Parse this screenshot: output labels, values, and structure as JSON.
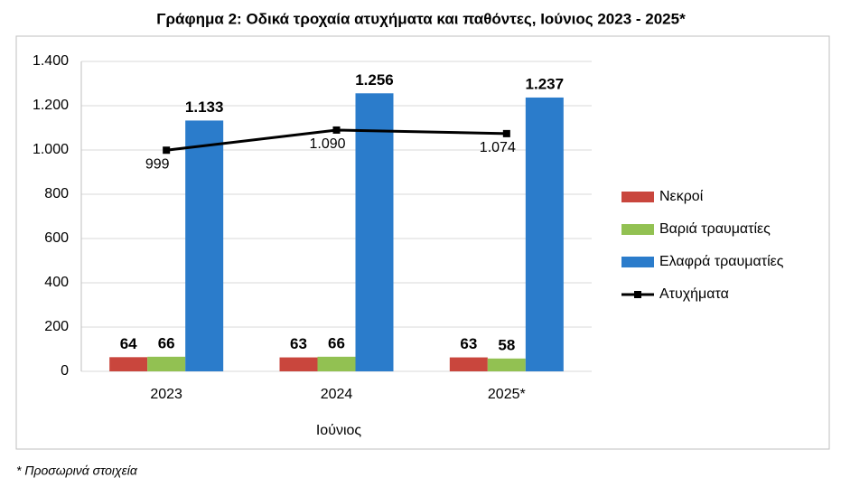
{
  "chart_data": {
    "type": "bar",
    "title": "Γράφημα 2: Οδικά τροχαία ατυχήματα και παθόντες, Ιούνιος 2023 - 2025*",
    "x_label": "Ιούνιος",
    "footnote": "* Προσωρινά στοιχεία",
    "categories": [
      "2023",
      "2024",
      "2025*"
    ],
    "series": [
      {
        "name": "Νεκροί",
        "color": "#c9463d",
        "values": [
          64,
          63,
          63
        ]
      },
      {
        "name": "Βαριά τραυματίες",
        "color": "#92c152",
        "values": [
          66,
          66,
          58
        ]
      },
      {
        "name": "Ελαφρά τραυματίες",
        "color": "#2b7ccb",
        "values": [
          1133,
          1256,
          1237
        ],
        "value_labels": [
          "1.133",
          "1.256",
          "1.237"
        ]
      },
      {
        "name": "Ατυχήματα",
        "type": "line",
        "color": "#000000",
        "values": [
          999,
          1090,
          1074
        ],
        "value_labels": [
          "999",
          "1.090",
          "1.074"
        ]
      }
    ],
    "ylim": [
      0,
      1400
    ],
    "yticks": [
      0,
      200,
      400,
      600,
      800,
      {
        "value": 1000,
        "label": "1.000"
      },
      {
        "value": 1200,
        "label": "1.200"
      },
      {
        "value": 1400,
        "label": "1.400"
      }
    ],
    "grid": true,
    "legend": "right"
  }
}
